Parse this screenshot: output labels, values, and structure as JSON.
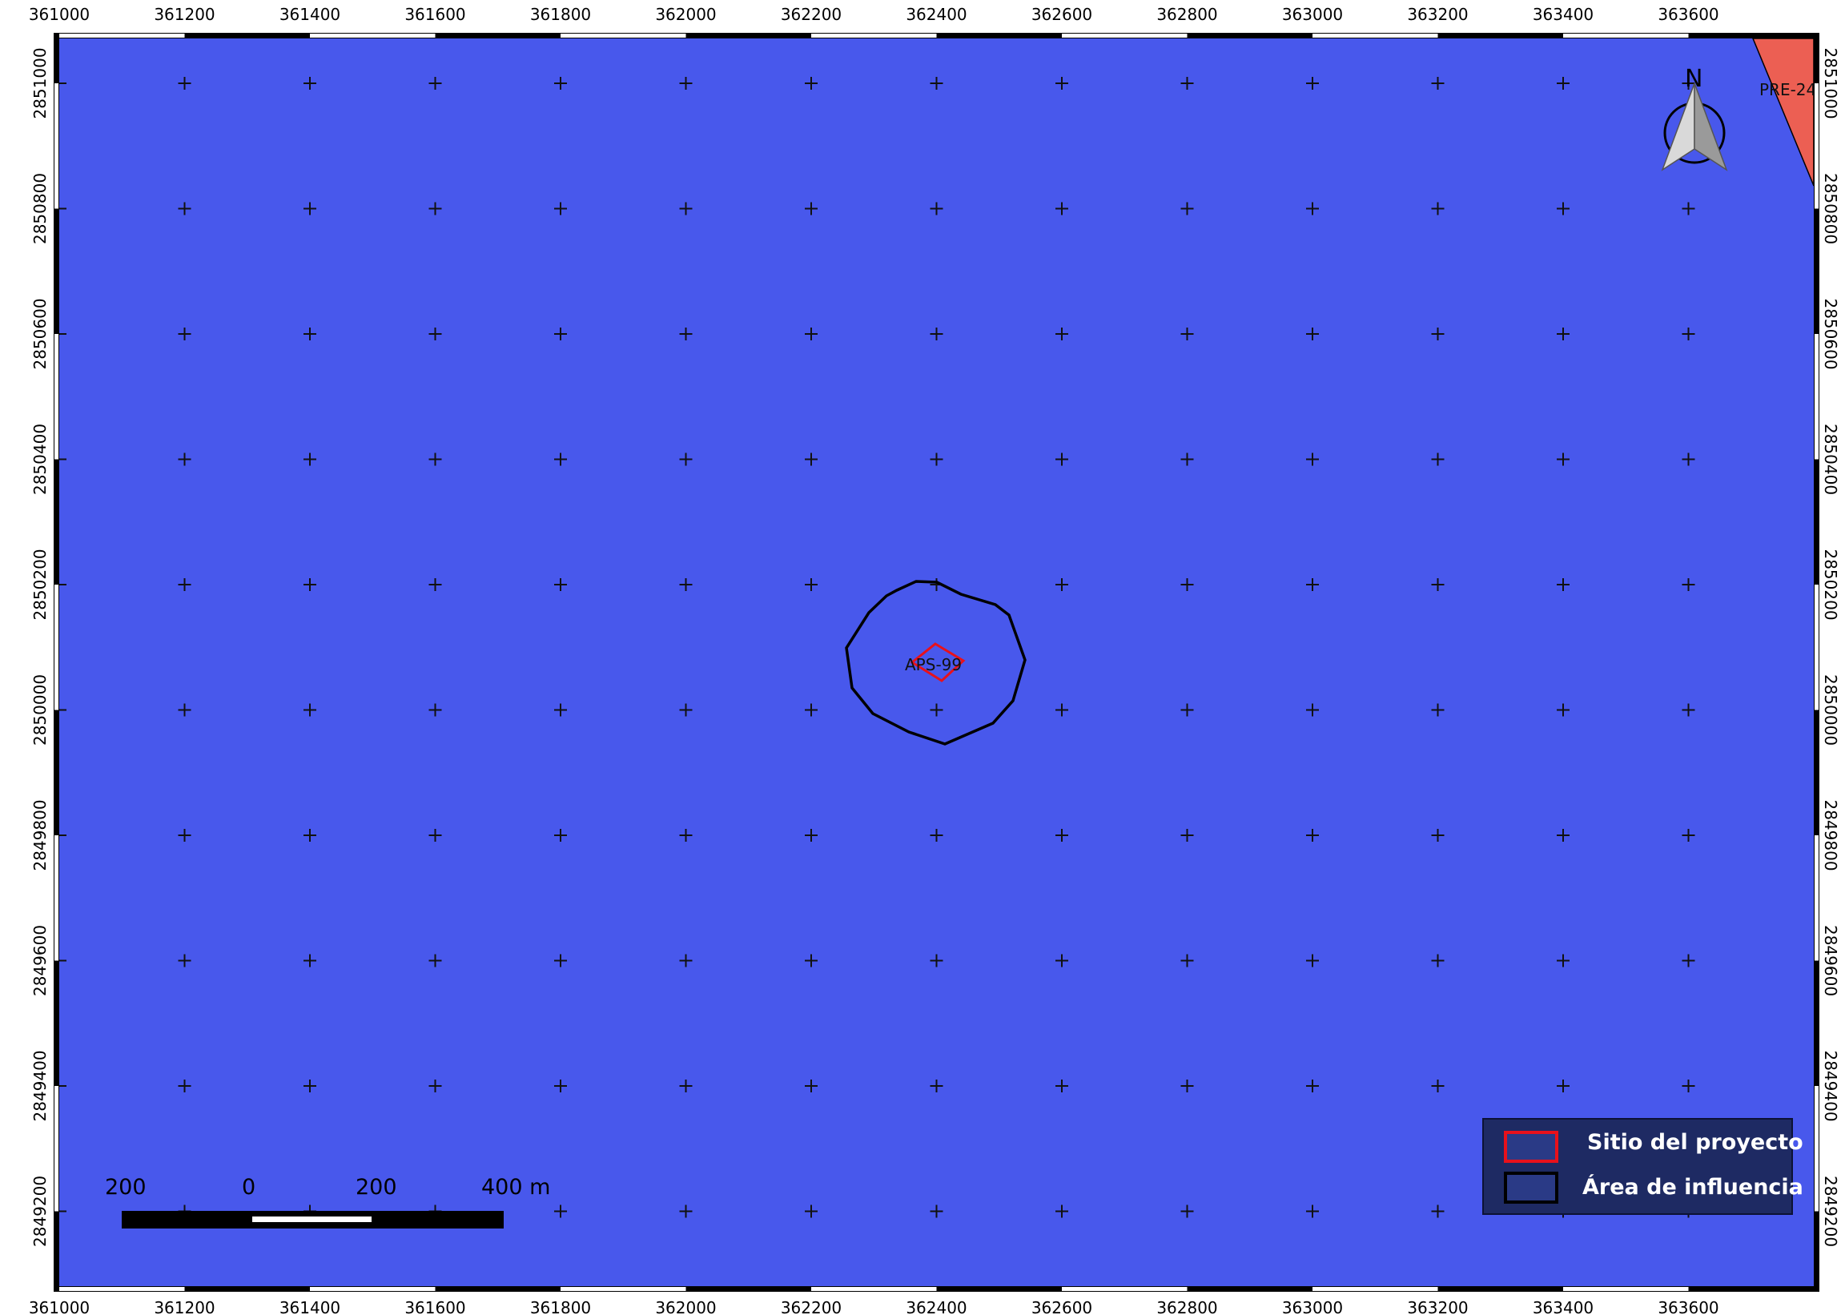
{
  "map": {
    "colors": {
      "water": "#4858EC",
      "pre_zone": "#EC5F53",
      "project_outline": "#E8111B",
      "influence_outline": "#000000",
      "legend_bg": "#1E2A63",
      "legend_swatch_fill": "#2A3A86"
    },
    "x_ticks": [
      361000,
      361200,
      361400,
      361600,
      361800,
      362000,
      362200,
      362400,
      362600,
      362800,
      363000,
      363200,
      363400,
      363600
    ],
    "y_ticks": [
      2851000,
      2850800,
      2850600,
      2850400,
      2850200,
      2850000,
      2849800,
      2849600,
      2849400,
      2849200
    ],
    "grid_crosses": true,
    "features": {
      "project_label": "APS-99",
      "pre_label": "PRE-24"
    },
    "legend": {
      "items": [
        {
          "label": "Sitio del proyecto",
          "outline": "red"
        },
        {
          "label": "Área de influencia",
          "outline": "black"
        }
      ]
    },
    "scale_bar": {
      "labels": [
        "200",
        "0",
        "200",
        "400 m"
      ]
    },
    "north_arrow": {
      "label": "N",
      "icon": "north-arrow-icon"
    }
  }
}
